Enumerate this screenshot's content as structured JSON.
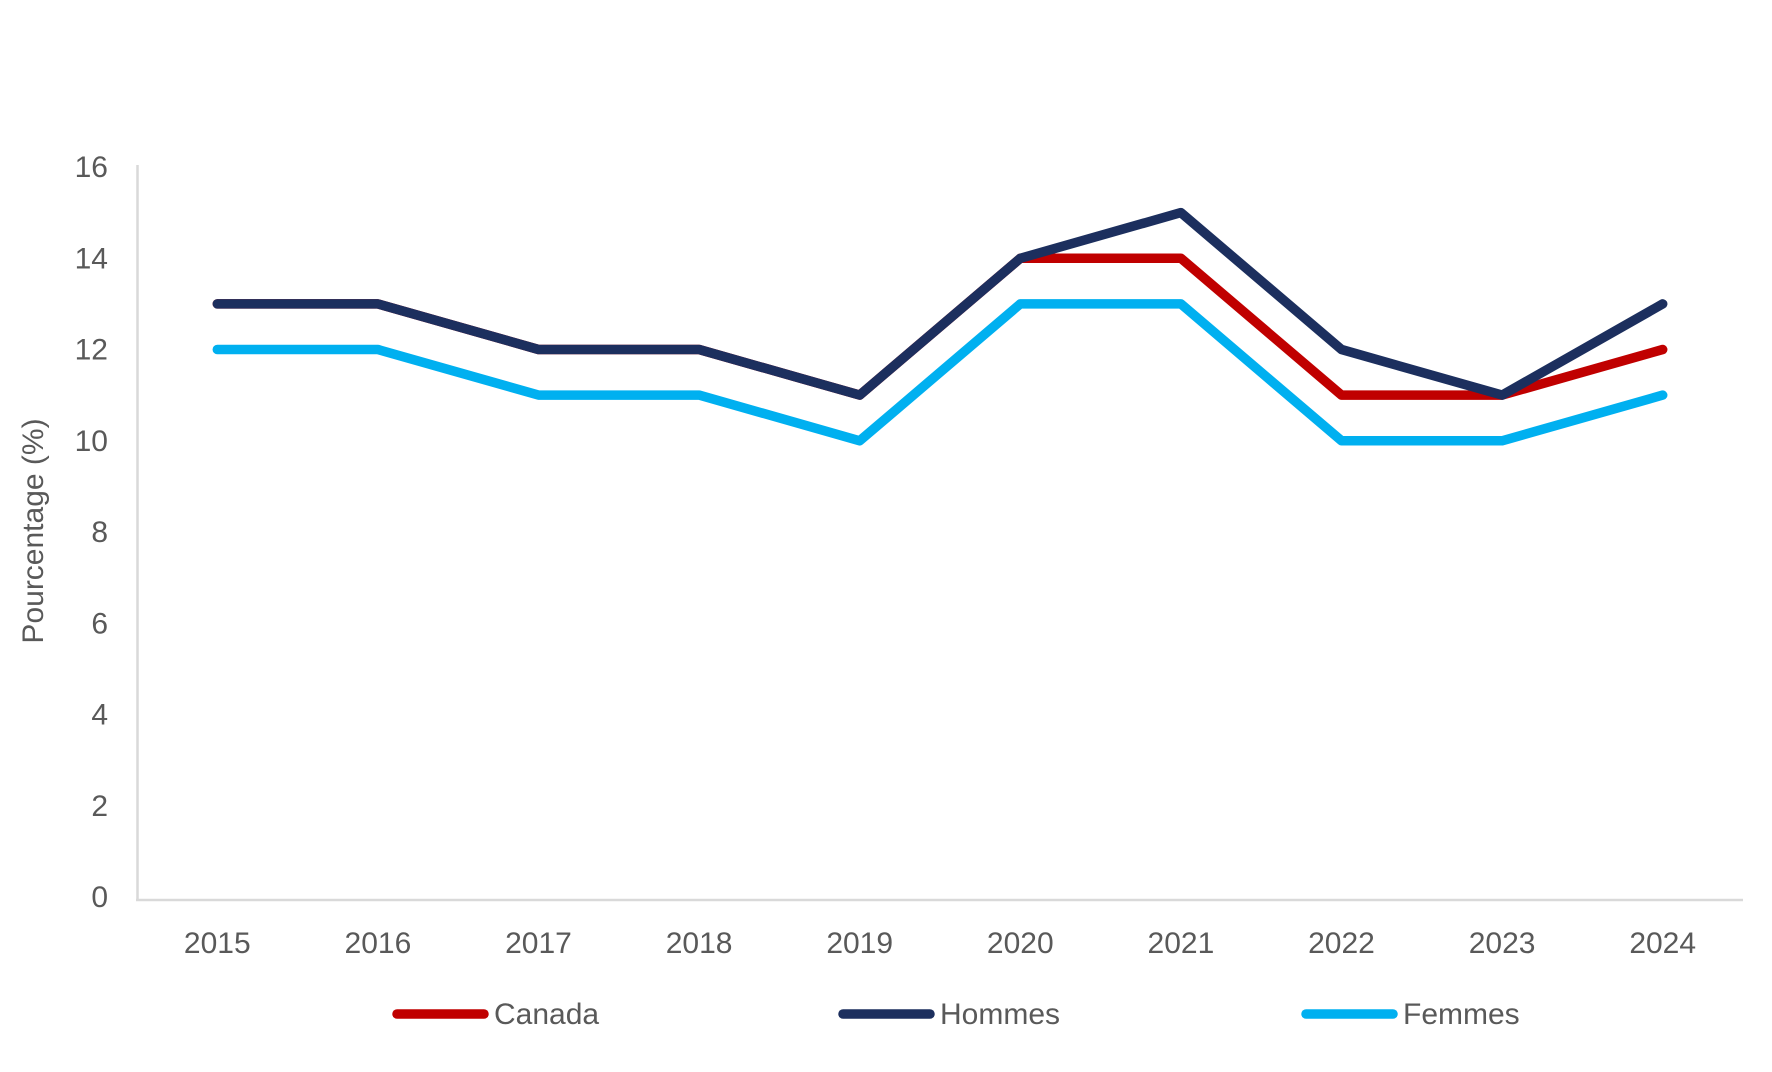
{
  "chart_data": {
    "type": "line",
    "title": "",
    "ylabel": "Pourcentage (%)",
    "xlabel": "",
    "categories": [
      "2015",
      "2016",
      "2017",
      "2018",
      "2019",
      "2020",
      "2021",
      "2022",
      "2023",
      "2024"
    ],
    "ylim": [
      0,
      16
    ],
    "ytick_step": 2,
    "yticks": [
      0,
      2,
      4,
      6,
      8,
      10,
      12,
      14,
      16
    ],
    "grid": false,
    "legend_position": "bottom",
    "series": [
      {
        "name": "Canada",
        "color": "#c00000",
        "values": [
          13,
          13,
          12,
          12,
          11,
          14,
          14,
          11,
          11,
          12
        ]
      },
      {
        "name": "Hommes",
        "color": "#1c2f5e",
        "values": [
          13,
          13,
          12,
          12,
          11,
          14,
          15,
          12,
          11,
          13
        ]
      },
      {
        "name": "Femmes",
        "color": "#00b0f0",
        "values": [
          12,
          12,
          11,
          11,
          10,
          13,
          13,
          10,
          10,
          11
        ]
      }
    ],
    "axis_line_color": "#d9d9d9",
    "text_color": "#595959"
  }
}
